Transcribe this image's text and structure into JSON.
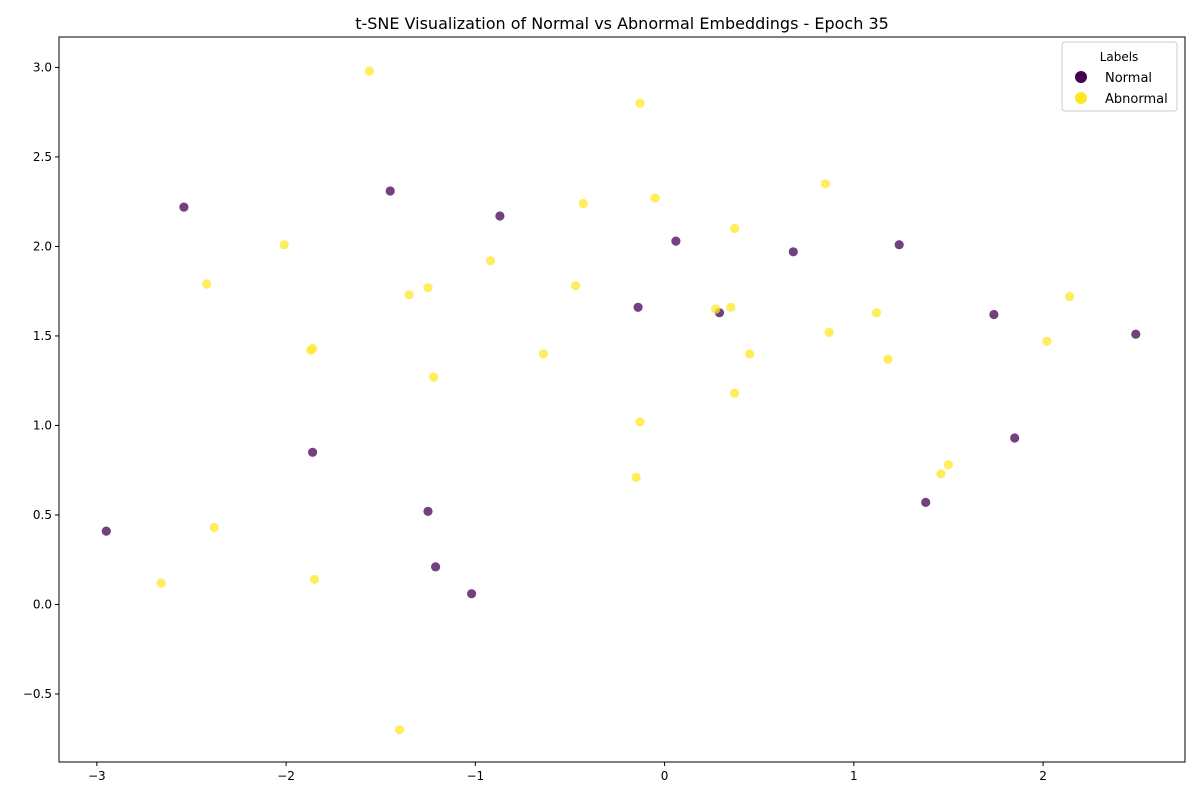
{
  "chart_data": {
    "type": "scatter",
    "title": "t-SNE Visualization of Normal vs Abnormal Embeddings - Epoch 35",
    "xlabel": "",
    "ylabel": "",
    "xlim": [
      -3.2,
      2.75
    ],
    "ylim": [
      -0.88,
      3.17
    ],
    "xticks": [
      -3,
      -2,
      -1,
      0,
      1,
      2
    ],
    "xtick_labels": [
      "−3",
      "−2",
      "−1",
      "0",
      "1",
      "2"
    ],
    "yticks": [
      -0.5,
      0.0,
      0.5,
      1.0,
      1.5,
      2.0,
      2.5,
      3.0
    ],
    "ytick_labels": [
      "−0.5",
      "0.0",
      "0.5",
      "1.0",
      "1.5",
      "2.0",
      "2.5",
      "3.0"
    ],
    "grid": false,
    "legend": {
      "title": "Labels",
      "position": "top-right",
      "entries": [
        "Normal",
        "Abnormal"
      ]
    },
    "series": [
      {
        "name": "Normal",
        "color": "#440154",
        "points": [
          [
            -2.54,
            2.22
          ],
          [
            -1.45,
            2.31
          ],
          [
            -0.87,
            2.17
          ],
          [
            0.06,
            2.03
          ],
          [
            0.68,
            1.97
          ],
          [
            1.24,
            2.01
          ],
          [
            -0.14,
            1.66
          ],
          [
            0.29,
            1.63
          ],
          [
            1.74,
            1.62
          ],
          [
            2.49,
            1.51
          ],
          [
            -1.86,
            0.85
          ],
          [
            1.85,
            0.93
          ],
          [
            1.38,
            0.57
          ],
          [
            -1.25,
            0.52
          ],
          [
            -2.95,
            0.41
          ],
          [
            -1.21,
            0.21
          ],
          [
            -1.02,
            0.06
          ]
        ]
      },
      {
        "name": "Abnormal",
        "color": "#fde725",
        "points": [
          [
            -1.56,
            2.98
          ],
          [
            -0.13,
            2.8
          ],
          [
            0.85,
            2.35
          ],
          [
            -0.43,
            2.24
          ],
          [
            -0.05,
            2.27
          ],
          [
            0.37,
            2.1
          ],
          [
            -2.01,
            2.01
          ],
          [
            -0.92,
            1.92
          ],
          [
            -2.42,
            1.79
          ],
          [
            -1.35,
            1.73
          ],
          [
            -1.25,
            1.77
          ],
          [
            -0.47,
            1.78
          ],
          [
            0.27,
            1.65
          ],
          [
            0.35,
            1.66
          ],
          [
            1.12,
            1.63
          ],
          [
            2.14,
            1.72
          ],
          [
            0.87,
            1.52
          ],
          [
            2.02,
            1.47
          ],
          [
            -1.87,
            1.42
          ],
          [
            -1.86,
            1.43
          ],
          [
            -0.64,
            1.4
          ],
          [
            0.45,
            1.4
          ],
          [
            1.18,
            1.37
          ],
          [
            -1.22,
            1.27
          ],
          [
            0.37,
            1.18
          ],
          [
            -0.13,
            1.02
          ],
          [
            -0.15,
            0.71
          ],
          [
            1.5,
            0.78
          ],
          [
            1.46,
            0.73
          ],
          [
            -2.38,
            0.43
          ],
          [
            -2.66,
            0.12
          ],
          [
            -1.85,
            0.14
          ],
          [
            -1.4,
            -0.7
          ]
        ]
      }
    ]
  }
}
